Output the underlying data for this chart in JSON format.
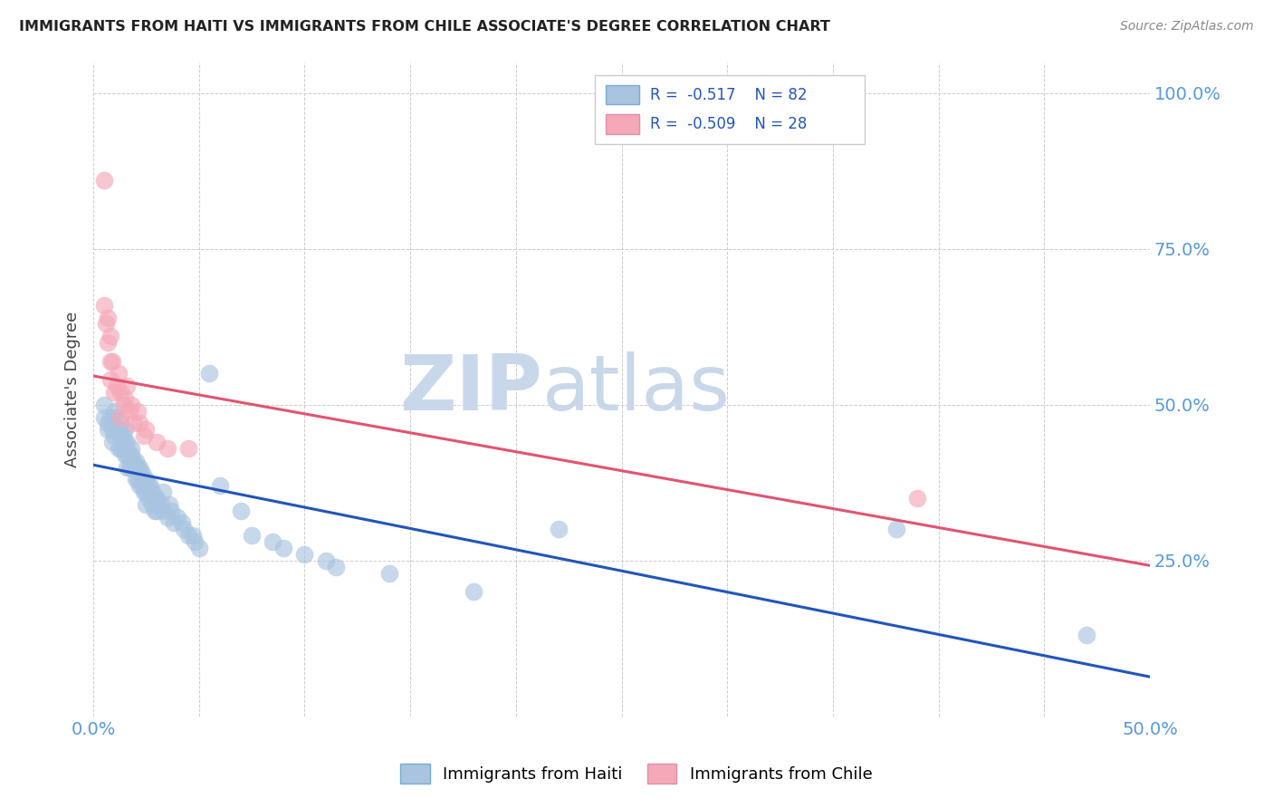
{
  "title": "IMMIGRANTS FROM HAITI VS IMMIGRANTS FROM CHILE ASSOCIATE'S DEGREE CORRELATION CHART",
  "source": "Source: ZipAtlas.com",
  "ylabel": "Associate's Degree",
  "xlim": [
    0.0,
    0.5
  ],
  "ylim": [
    0.0,
    1.05
  ],
  "haiti_R": -0.517,
  "haiti_N": 82,
  "chile_R": -0.509,
  "chile_N": 28,
  "haiti_color": "#a8c4e0",
  "chile_color": "#f4a8b8",
  "haiti_line_color": "#2255bb",
  "chile_line_color": "#e05570",
  "watermark_zip": "ZIP",
  "watermark_atlas": "atlas",
  "watermark_color_zip": "#c8d8ea",
  "watermark_color_atlas": "#c8d8ea",
  "haiti_x": [
    0.005,
    0.005,
    0.007,
    0.007,
    0.008,
    0.009,
    0.009,
    0.01,
    0.01,
    0.01,
    0.012,
    0.012,
    0.013,
    0.013,
    0.013,
    0.014,
    0.014,
    0.015,
    0.015,
    0.015,
    0.015,
    0.016,
    0.016,
    0.016,
    0.017,
    0.017,
    0.018,
    0.018,
    0.018,
    0.019,
    0.02,
    0.02,
    0.02,
    0.021,
    0.021,
    0.022,
    0.022,
    0.022,
    0.023,
    0.023,
    0.024,
    0.024,
    0.025,
    0.025,
    0.025,
    0.026,
    0.026,
    0.027,
    0.028,
    0.028,
    0.029,
    0.029,
    0.03,
    0.03,
    0.032,
    0.033,
    0.033,
    0.035,
    0.036,
    0.037,
    0.038,
    0.04,
    0.042,
    0.043,
    0.045,
    0.047,
    0.048,
    0.05,
    0.055,
    0.06,
    0.07,
    0.075,
    0.085,
    0.09,
    0.1,
    0.11,
    0.115,
    0.14,
    0.18,
    0.22,
    0.38,
    0.47
  ],
  "haiti_y": [
    0.5,
    0.48,
    0.47,
    0.46,
    0.48,
    0.46,
    0.44,
    0.49,
    0.48,
    0.45,
    0.46,
    0.43,
    0.47,
    0.45,
    0.43,
    0.45,
    0.43,
    0.46,
    0.44,
    0.43,
    0.42,
    0.44,
    0.42,
    0.4,
    0.42,
    0.4,
    0.43,
    0.42,
    0.4,
    0.41,
    0.41,
    0.4,
    0.38,
    0.4,
    0.38,
    0.4,
    0.39,
    0.37,
    0.39,
    0.37,
    0.38,
    0.36,
    0.38,
    0.36,
    0.34,
    0.37,
    0.35,
    0.37,
    0.36,
    0.34,
    0.35,
    0.33,
    0.35,
    0.33,
    0.34,
    0.36,
    0.33,
    0.32,
    0.34,
    0.33,
    0.31,
    0.32,
    0.31,
    0.3,
    0.29,
    0.29,
    0.28,
    0.27,
    0.55,
    0.37,
    0.33,
    0.29,
    0.28,
    0.27,
    0.26,
    0.25,
    0.24,
    0.23,
    0.2,
    0.3,
    0.3,
    0.13
  ],
  "chile_x": [
    0.005,
    0.005,
    0.006,
    0.007,
    0.007,
    0.008,
    0.008,
    0.008,
    0.009,
    0.01,
    0.011,
    0.012,
    0.013,
    0.013,
    0.014,
    0.015,
    0.016,
    0.017,
    0.018,
    0.019,
    0.021,
    0.022,
    0.024,
    0.025,
    0.03,
    0.035,
    0.045,
    0.39
  ],
  "chile_y": [
    0.86,
    0.66,
    0.63,
    0.64,
    0.6,
    0.61,
    0.57,
    0.54,
    0.57,
    0.52,
    0.53,
    0.55,
    0.52,
    0.48,
    0.5,
    0.51,
    0.53,
    0.49,
    0.5,
    0.47,
    0.49,
    0.47,
    0.45,
    0.46,
    0.44,
    0.43,
    0.43,
    0.35
  ]
}
